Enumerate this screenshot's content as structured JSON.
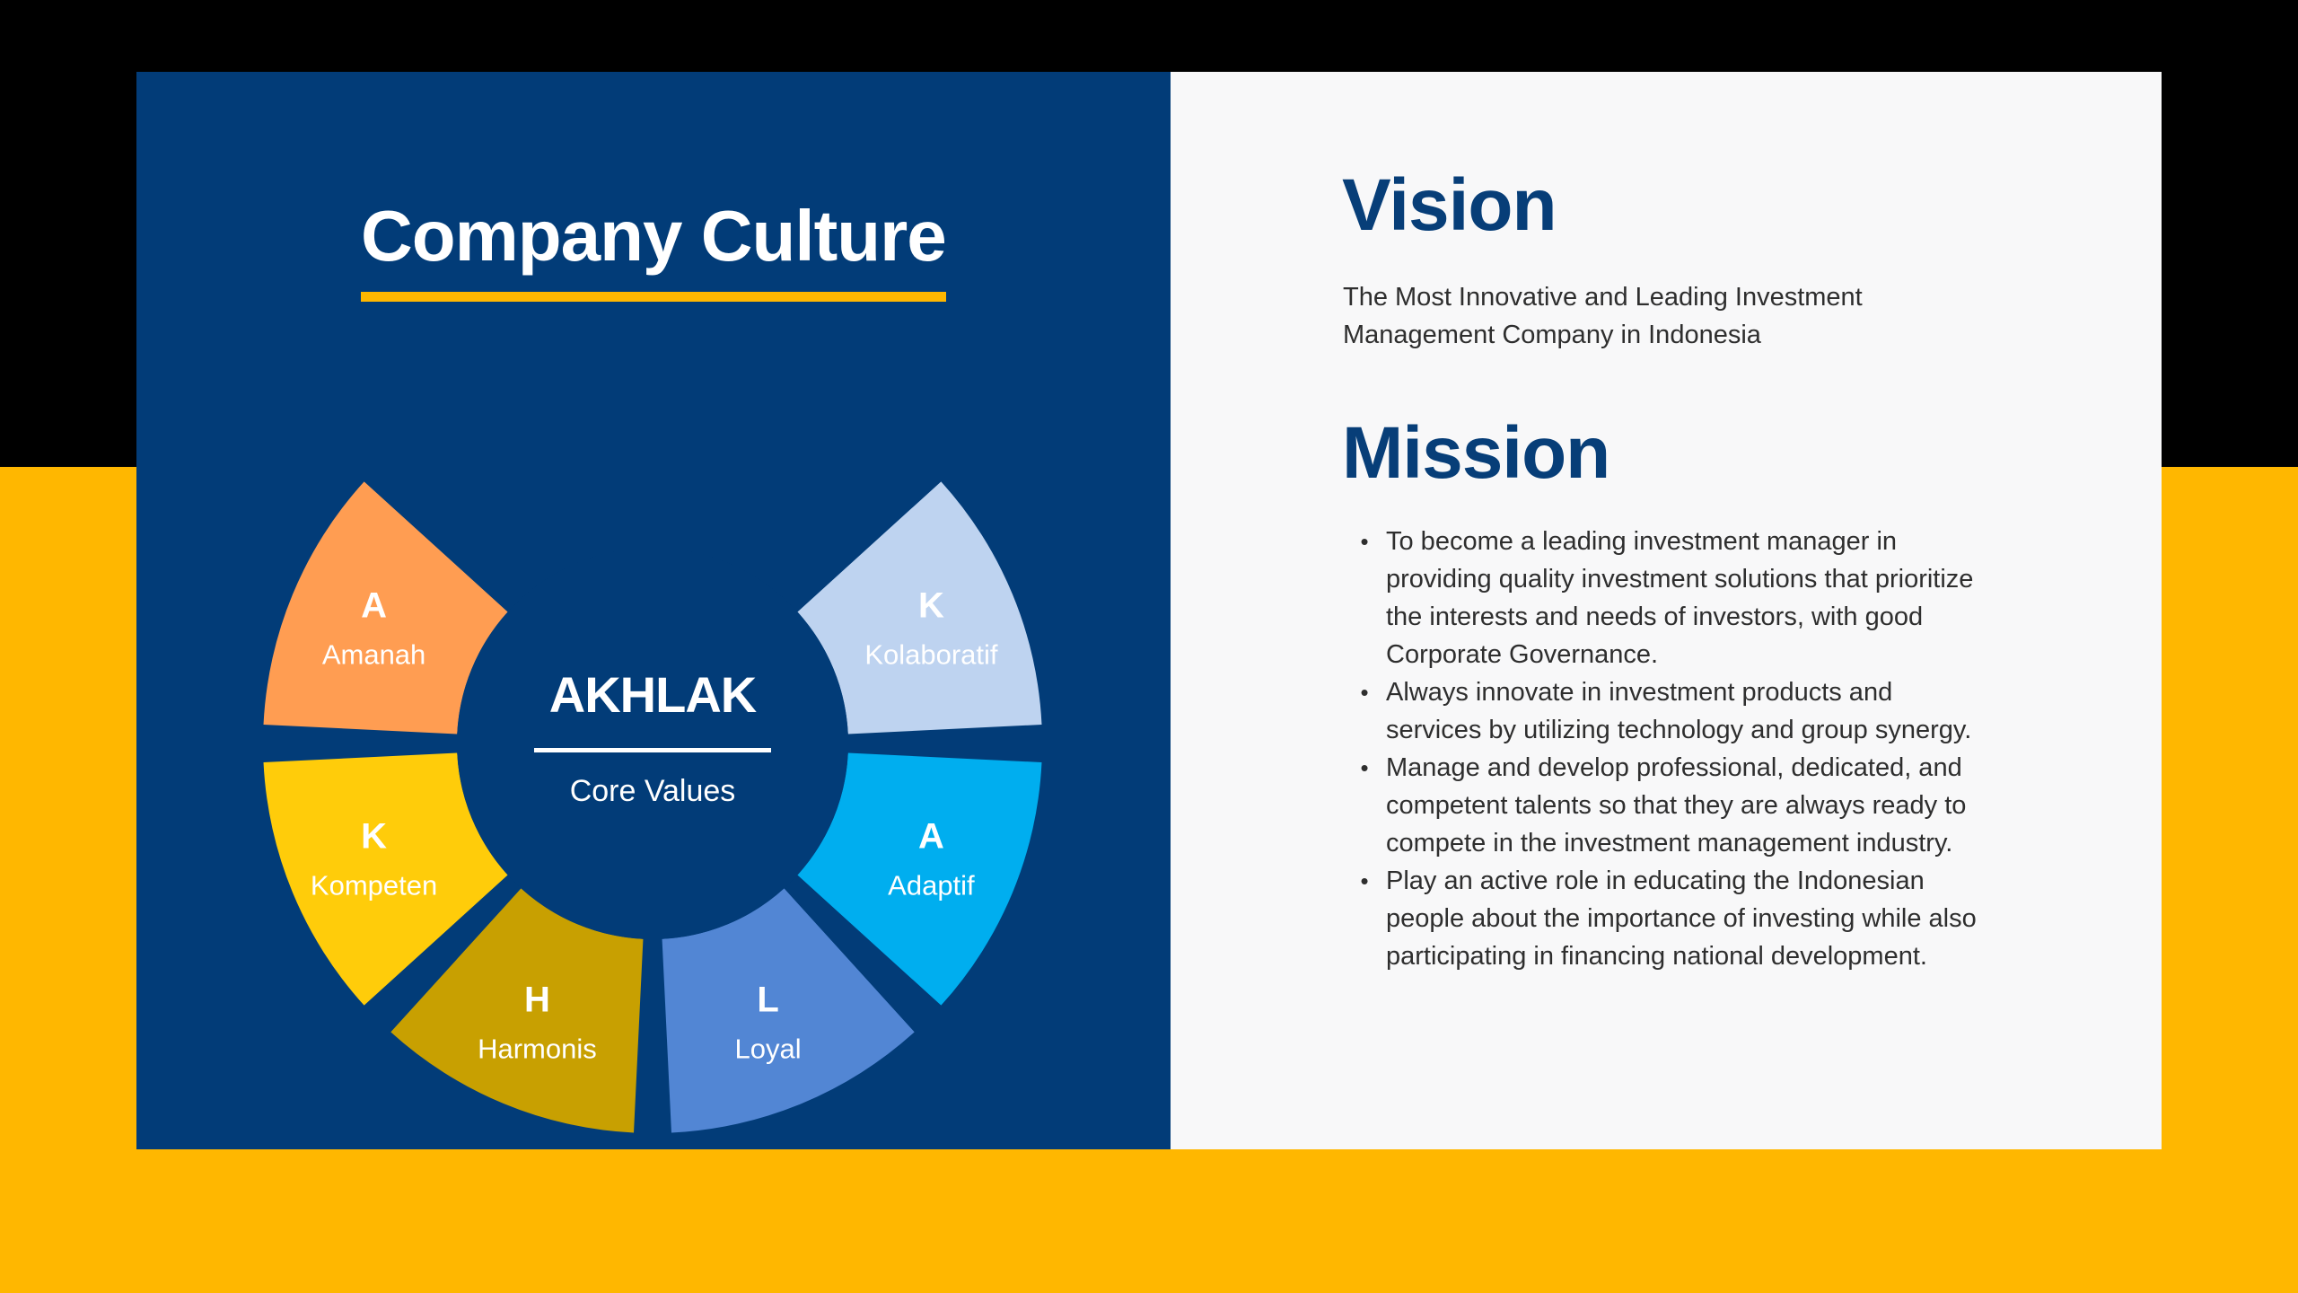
{
  "culture": {
    "title": "Company Culture",
    "underline_color": "#FFB700",
    "center": {
      "title": "AKHLAK",
      "subtitle": "Core Values"
    },
    "values": [
      {
        "letter": "A",
        "label": "Amanah",
        "color": "#FF9D52"
      },
      {
        "letter": "K",
        "label": "Kompeten",
        "color": "#FFCC0A"
      },
      {
        "letter": "H",
        "label": "Harmonis",
        "color": "#C8A001"
      },
      {
        "letter": "L",
        "label": "Loyal",
        "color": "#5286D4"
      },
      {
        "letter": "A",
        "label": "Adaptif",
        "color": "#00AEEF"
      },
      {
        "letter": "K",
        "label": "Kolaboratif",
        "color": "#BED3F0"
      }
    ]
  },
  "vision": {
    "title": "Vision",
    "text": "The Most Innovative and Leading Investment Management Company in Indonesia"
  },
  "mission": {
    "title": "Mission",
    "bullet": "•",
    "items": [
      "To become a leading investment manager in providing quality investment solutions that prioritize the interests and needs of investors, with good Corporate Governance.",
      "Always innovate in investment products and services by utilizing technology and group synergy.",
      "Manage and develop professional, dedicated, and competent talents so that they are always ready to compete in the investment management industry.",
      "Play an active role in educating the Indonesian people about the importance of investing while also participating in financing national development."
    ]
  },
  "colors": {
    "background_top": "#000000",
    "background_bottom": "#FFB700",
    "left_panel": "#023C78",
    "right_panel": "#F8F8F9",
    "heading": "#073E78",
    "body_text": "#2E2E2E"
  }
}
